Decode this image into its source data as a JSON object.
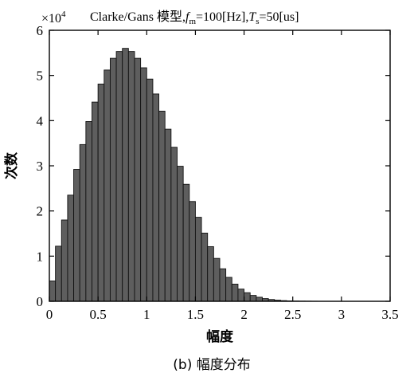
{
  "chart_data": {
    "type": "bar",
    "title": "Clarke/Gans 模型,",
    "title_params": [
      {
        "sym": "f",
        "sub": "m",
        "value": "=100[Hz],"
      },
      {
        "sym": "T",
        "sub": "s",
        "value": "=50[us]"
      }
    ],
    "xlabel": "幅度",
    "ylabel": "次数",
    "y_multiplier": "×10",
    "y_multiplier_exp": "4",
    "caption": "(b) 幅度分布",
    "xlim": [
      0,
      3.5
    ],
    "ylim": [
      0,
      6
    ],
    "xticks": [
      "0",
      "0.5",
      "1",
      "1.5",
      "2",
      "2.5",
      "3",
      "3.5"
    ],
    "xtick_values": [
      0,
      0.5,
      1,
      1.5,
      2,
      2.5,
      3,
      3.5
    ],
    "yticks": [
      "0",
      "1",
      "2",
      "3",
      "4",
      "5",
      "6"
    ],
    "ytick_values": [
      0,
      1,
      2,
      3,
      4,
      5,
      6
    ],
    "bin_width": 0.0625,
    "bin_start": 0,
    "values": [
      0.45,
      1.22,
      1.8,
      2.35,
      2.92,
      3.47,
      3.98,
      4.41,
      4.81,
      5.12,
      5.38,
      5.53,
      5.6,
      5.53,
      5.38,
      5.17,
      4.92,
      4.59,
      4.21,
      3.81,
      3.41,
      2.99,
      2.59,
      2.21,
      1.86,
      1.51,
      1.21,
      0.95,
      0.72,
      0.53,
      0.38,
      0.27,
      0.19,
      0.13,
      0.09,
      0.06,
      0.04,
      0.025,
      0.015,
      0.009,
      0.006,
      0.004,
      0.003,
      0.002,
      0.001,
      0.001,
      0.0005,
      0.0005,
      0.0003,
      0.0002,
      0.0001,
      0.0001
    ],
    "bar_fill": "#5e5e5e",
    "bar_edge": "#111111",
    "axis_color": "#000000",
    "grid": false
  }
}
